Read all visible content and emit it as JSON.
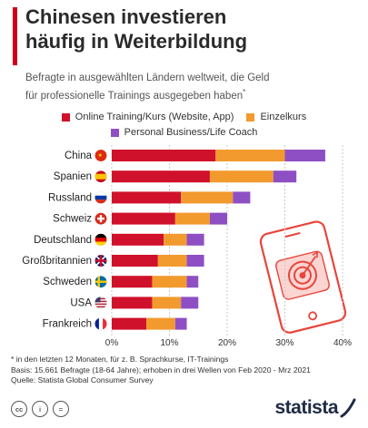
{
  "header": {
    "title_line1": "Chinesen investieren",
    "title_line2": "häufig in Weiterbildung",
    "subtitle_line1": "Befragte in ausgewählten Ländern weltweit, die Geld",
    "subtitle_line2": "für professionelle Trainings ausgegeben haben",
    "subtitle_mark": "*"
  },
  "footer": {
    "note1": "* in den letzten 12 Monaten, für z. B. Sprachkurse, IT-Trainings",
    "note2": "Basis: 15.661 Befragte (18-64 Jahre); erhoben in drei Wellen von Feb 2020 - Mrz 2021",
    "source": "Quelle: Statista Global Consumer Survey",
    "cc_labels": [
      "cc",
      "i",
      "="
    ],
    "brand": "statista"
  },
  "colors": {
    "title_bar": "#d0021b",
    "online": "#d0112b",
    "einzelkurs": "#f29a2e",
    "coach": "#8e4fc4",
    "grid": "#c8c8c8",
    "brand": "#1f2a44"
  },
  "chart_data": {
    "type": "bar",
    "orientation": "horizontal",
    "stacked": true,
    "categories": [
      "China",
      "Spanien",
      "Russland",
      "Schweiz",
      "Deutschland",
      "Großbritannien",
      "Schweden",
      "USA",
      "Frankreich"
    ],
    "series": [
      {
        "name": "Online Training/Kurs (Website, App)",
        "color": "#d0112b",
        "values": [
          18,
          17,
          12,
          11,
          9,
          8,
          7,
          7,
          6
        ]
      },
      {
        "name": "Einzelkurs",
        "color": "#f29a2e",
        "values": [
          12,
          11,
          9,
          6,
          4,
          5,
          6,
          5,
          5
        ]
      },
      {
        "name": "Personal Business/Life Coach",
        "color": "#8e4fc4",
        "values": [
          7,
          4,
          3,
          3,
          3,
          3,
          2,
          3,
          2
        ]
      }
    ],
    "xlim": [
      0,
      40
    ],
    "xticks": [
      "0%",
      "10%",
      "20%",
      "30%",
      "40%"
    ],
    "xtick_values": [
      0,
      10,
      20,
      30,
      40
    ],
    "grid": true,
    "legend_position": "top"
  }
}
